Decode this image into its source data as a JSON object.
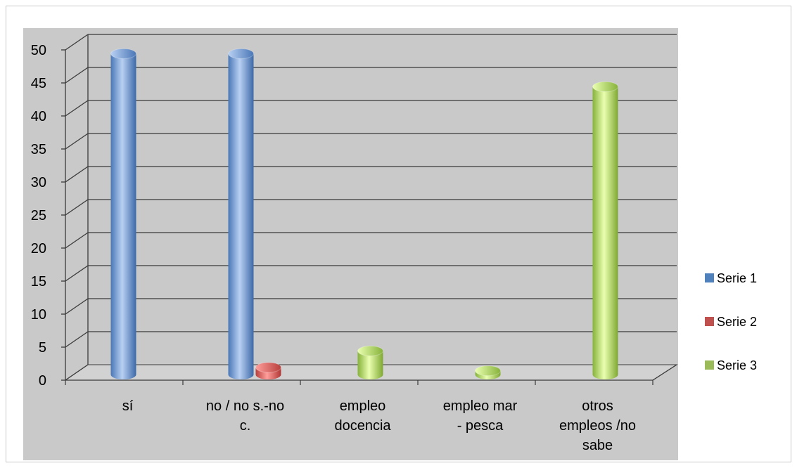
{
  "chart_data": {
    "type": "bar",
    "style": "3d-cylinder",
    "categories": [
      "sí",
      "no / no s.-no c.",
      "empleo docencia",
      "empleo mar - pesca",
      "otros empleos /no sabe"
    ],
    "category_lines": [
      [
        "sí"
      ],
      [
        "no / no s.-no",
        "c."
      ],
      [
        "empleo",
        "docencia"
      ],
      [
        "empleo mar",
        "- pesca"
      ],
      [
        "otros",
        "empleos /no",
        "sabe"
      ]
    ],
    "series": [
      {
        "name": "Serie 1",
        "color": "#4f81bd",
        "values": [
          49,
          49,
          0,
          0,
          0
        ]
      },
      {
        "name": "Serie 2",
        "color": "#c0504d",
        "values": [
          0,
          1.5,
          0,
          0,
          0
        ]
      },
      {
        "name": "Serie 3",
        "color": "#9bbb59",
        "values": [
          0,
          0,
          4,
          1,
          44
        ]
      }
    ],
    "yticks": [
      "0",
      "5",
      "10",
      "15",
      "20",
      "25",
      "30",
      "35",
      "40",
      "45",
      "50"
    ],
    "ylim": [
      0,
      50
    ],
    "grid": true,
    "legend_position": "right",
    "plot_background": "#c9c9c9"
  }
}
